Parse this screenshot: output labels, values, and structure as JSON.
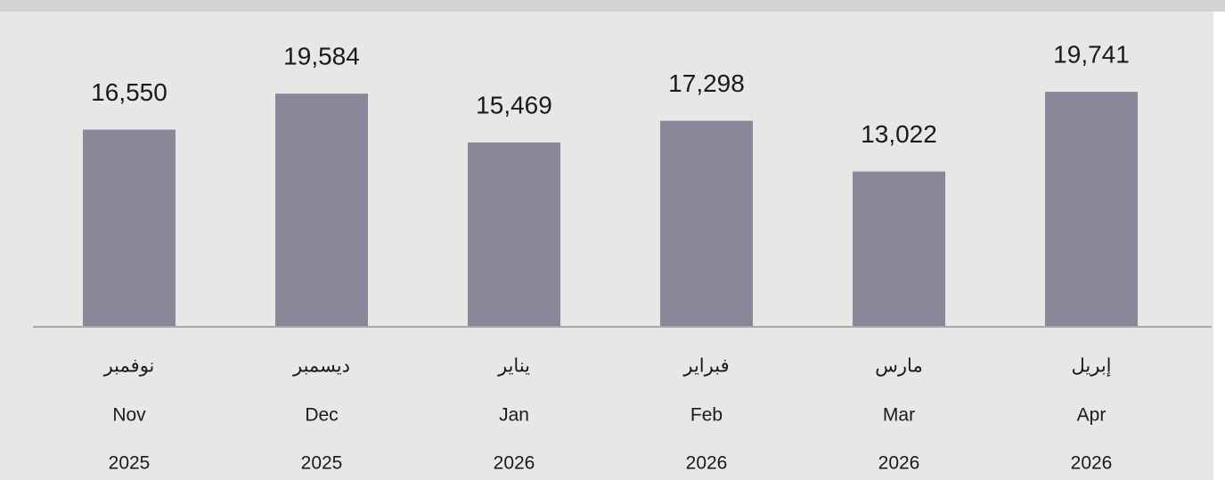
{
  "chart_data": {
    "type": "bar",
    "categories": [
      [
        "نوفمبر",
        "Nov",
        "2025"
      ],
      [
        "ديسمبر",
        "Dec",
        "2025"
      ],
      [
        "يناير",
        "Jan",
        "2026"
      ],
      [
        "فبراير",
        "Feb",
        "2026"
      ],
      [
        "مارس",
        "Mar",
        "2026"
      ],
      [
        "إبريل",
        "Apr",
        "2026"
      ]
    ],
    "values": [
      16550,
      19584,
      15469,
      17298,
      13022,
      19741
    ],
    "value_labels": [
      "16,550",
      "19,584",
      "15,469",
      "17,298",
      "13,022",
      "19,741"
    ],
    "color": "#878799",
    "ylim": [
      0,
      22000
    ]
  }
}
